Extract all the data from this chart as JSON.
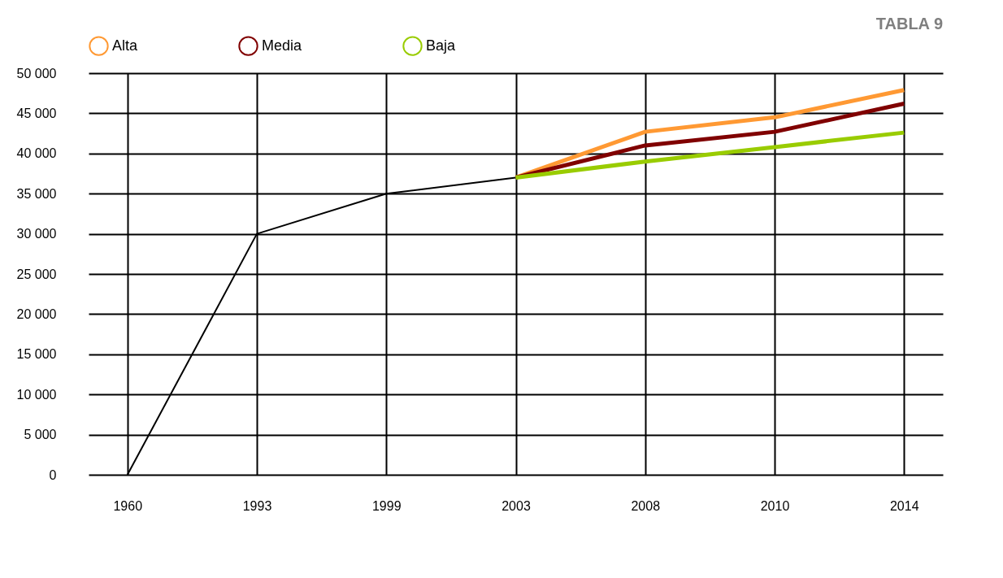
{
  "chart_data": {
    "type": "line",
    "title": "TABLA 9",
    "categories": [
      "1960",
      "1993",
      "1999",
      "2003",
      "2008",
      "2010",
      "2014"
    ],
    "series": [
      {
        "color": "#000000",
        "values": [
          0,
          30000,
          35000,
          37000,
          null,
          null,
          null
        ]
      },
      {
        "name": "Alta",
        "color": "#ff9933",
        "values": [
          null,
          null,
          null,
          37000,
          42700,
          44500,
          47900
        ]
      },
      {
        "name": "Media",
        "color": "#800000",
        "values": [
          null,
          null,
          null,
          37000,
          41000,
          42700,
          46200
        ]
      },
      {
        "name": "Baja",
        "color": "#99cc00",
        "values": [
          null,
          null,
          null,
          37000,
          39000,
          40800,
          42600
        ]
      }
    ],
    "ylim": [
      0,
      50000
    ],
    "yticks": [
      {
        "value": 0,
        "label": "0"
      },
      {
        "value": 5000,
        "label": "5 000"
      },
      {
        "value": 10000,
        "label": "10 000"
      },
      {
        "value": 15000,
        "label": "15 000"
      },
      {
        "value": 20000,
        "label": "20 000"
      },
      {
        "value": 25000,
        "label": "25 000"
      },
      {
        "value": 30000,
        "label": "30 000"
      },
      {
        "value": 35000,
        "label": "35 000"
      },
      {
        "value": 40000,
        "label": "40 000"
      },
      {
        "value": 45000,
        "label": "45 000"
      },
      {
        "value": 50000,
        "label": "50 000"
      }
    ],
    "grid": true,
    "legend": "top",
    "marker": "none",
    "line_style": "solid"
  }
}
